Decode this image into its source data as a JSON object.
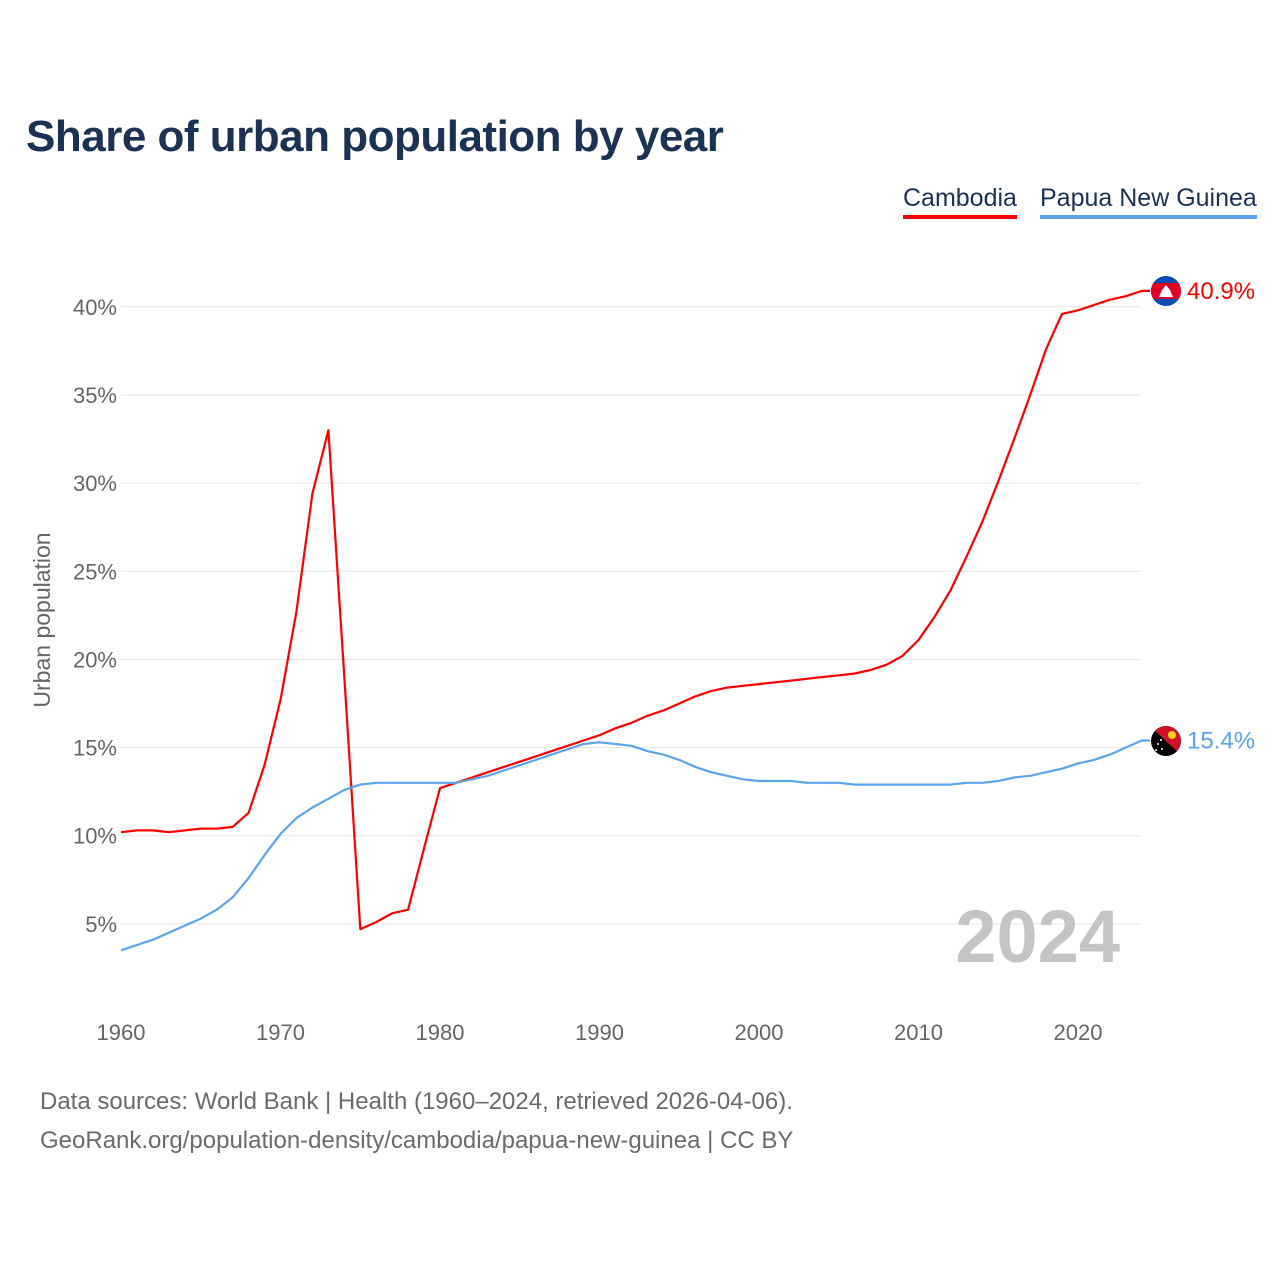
{
  "chart_data": {
    "type": "line",
    "title": "Share of urban population by year",
    "xlabel": "",
    "ylabel": "Urban population",
    "xlim": [
      1960,
      2024
    ],
    "ylim": [
      0,
      42
    ],
    "x_ticks": [
      1960,
      1970,
      1980,
      1990,
      2000,
      2010,
      2020
    ],
    "y_ticks": [
      5,
      10,
      15,
      20,
      25,
      30,
      35,
      40
    ],
    "y_tick_labels": [
      "5%",
      "10%",
      "15%",
      "20%",
      "25%",
      "30%",
      "35%",
      "40%"
    ],
    "x_tick_labels": [
      "1960",
      "1970",
      "1980",
      "1990",
      "2000",
      "2010",
      "2020"
    ],
    "grid": true,
    "legend_position": "top-right",
    "year_watermark": "2024",
    "x": [
      1960,
      1961,
      1962,
      1963,
      1964,
      1965,
      1966,
      1967,
      1968,
      1969,
      1970,
      1971,
      1972,
      1973,
      1974,
      1975,
      1976,
      1977,
      1978,
      1979,
      1980,
      1981,
      1982,
      1983,
      1984,
      1985,
      1986,
      1987,
      1988,
      1989,
      1990,
      1991,
      1992,
      1993,
      1994,
      1995,
      1996,
      1997,
      1998,
      1999,
      2000,
      2001,
      2002,
      2003,
      2004,
      2005,
      2006,
      2007,
      2008,
      2009,
      2010,
      2011,
      2012,
      2013,
      2014,
      2015,
      2016,
      2017,
      2018,
      2019,
      2020,
      2021,
      2022,
      2023,
      2024
    ],
    "series": [
      {
        "name": "Cambodia",
        "color": "#ff0000",
        "end_label": "40.9%",
        "values": [
          10.2,
          10.3,
          10.3,
          10.2,
          10.3,
          10.4,
          10.4,
          10.5,
          11.3,
          14.0,
          17.7,
          22.7,
          29.4,
          33.0,
          19.0,
          4.7,
          5.1,
          5.6,
          5.8,
          9.3,
          12.7,
          13.0,
          13.3,
          13.6,
          13.9,
          14.2,
          14.5,
          14.8,
          15.1,
          15.4,
          15.7,
          16.1,
          16.4,
          16.8,
          17.1,
          17.5,
          17.9,
          18.2,
          18.4,
          18.5,
          18.6,
          18.7,
          18.8,
          18.9,
          19.0,
          19.1,
          19.2,
          19.4,
          19.7,
          20.2,
          21.1,
          22.4,
          23.9,
          25.8,
          27.8,
          30.1,
          32.5,
          35.0,
          37.6,
          39.6,
          39.8,
          40.1,
          40.4,
          40.6,
          40.9
        ]
      },
      {
        "name": "Papua New Guinea",
        "color": "#5ca5ec",
        "end_label": "15.4%",
        "values": [
          3.5,
          3.8,
          4.1,
          4.5,
          4.9,
          5.3,
          5.8,
          6.5,
          7.6,
          8.9,
          10.1,
          11.0,
          11.6,
          12.1,
          12.6,
          12.9,
          13.0,
          13.0,
          13.0,
          13.0,
          13.0,
          13.0,
          13.2,
          13.4,
          13.7,
          14.0,
          14.3,
          14.6,
          14.9,
          15.2,
          15.3,
          15.2,
          15.1,
          14.8,
          14.6,
          14.3,
          13.9,
          13.6,
          13.4,
          13.2,
          13.1,
          13.1,
          13.1,
          13.0,
          13.0,
          13.0,
          12.9,
          12.9,
          12.9,
          12.9,
          12.9,
          12.9,
          12.9,
          13.0,
          13.0,
          13.1,
          13.3,
          13.4,
          13.6,
          13.8,
          14.1,
          14.3,
          14.6,
          15.0,
          15.4
        ]
      }
    ]
  },
  "legend": {
    "cambodia": "Cambodia",
    "png": "Papua New Guinea"
  },
  "footer": {
    "source": "Data sources: World Bank | Health (1960–2024, retrieved 2026-04-06).",
    "url": "GeoRank.org/population-density/cambodia/papua-new-guinea | CC BY"
  }
}
